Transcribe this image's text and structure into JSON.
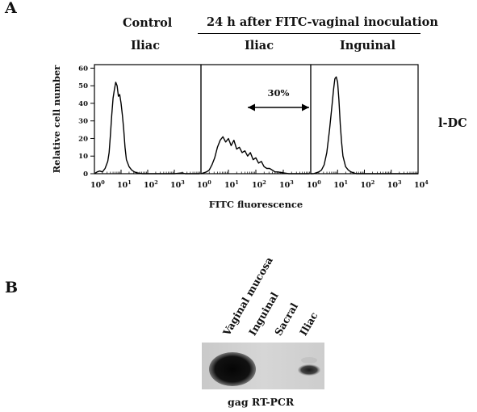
{
  "panel_a": {
    "letter": "A",
    "control_header": "Control",
    "infection_header": "24 h after FITC-vaginal inoculation",
    "subheaders": [
      "Iliac",
      "Iliac",
      "Inguinal"
    ],
    "row_label": "l-DC",
    "arrow_label": "30%"
  },
  "chart_data": {
    "type": "line",
    "xlabel": "FITC fluorescence",
    "ylabel": "Relative cell number",
    "x_scale": "log",
    "x_ticks": [
      "0",
      "1",
      "2",
      "3"
    ],
    "x_ticks_last_panel": [
      "0",
      "1",
      "2",
      "3",
      "4"
    ],
    "y_ticks": [
      0,
      10,
      20,
      30,
      40,
      50,
      60
    ],
    "ylim": [
      0,
      62
    ],
    "series": [
      {
        "x": [
          0.0,
          0.1,
          0.2,
          0.3,
          0.4,
          0.5,
          0.55,
          0.6,
          0.65,
          0.7,
          0.75,
          0.8,
          0.85,
          0.9,
          0.95,
          1.0,
          1.05,
          1.1,
          1.15,
          1.2,
          1.3,
          1.4,
          1.5,
          1.6,
          1.8,
          2.2,
          2.6,
          3.0,
          3.3,
          3.4,
          3.6,
          3.95
        ],
        "y": [
          0,
          1,
          1.5,
          1,
          3,
          7,
          12,
          22,
          33,
          43,
          48,
          52,
          50,
          44,
          45,
          40,
          33,
          25,
          15,
          8,
          4,
          2,
          1,
          0.5,
          0,
          0,
          0,
          0,
          0.5,
          0,
          0,
          0
        ]
      },
      {
        "x": [
          0.0,
          0.1,
          0.2,
          0.3,
          0.4,
          0.5,
          0.6,
          0.7,
          0.8,
          0.9,
          1.0,
          1.1,
          1.2,
          1.3,
          1.4,
          1.5,
          1.6,
          1.7,
          1.8,
          1.9,
          2.0,
          2.1,
          2.2,
          2.3,
          2.4,
          2.5,
          2.6,
          2.7,
          2.8,
          3.0,
          3.2,
          3.4,
          3.6,
          3.95
        ],
        "y": [
          0,
          0.5,
          1,
          2,
          5,
          9,
          15,
          19,
          21,
          18,
          20,
          16,
          19,
          14,
          15,
          12,
          13,
          10,
          12,
          8,
          9,
          6,
          7,
          4,
          3,
          3,
          2,
          1,
          1,
          0.5,
          0,
          0,
          0,
          0
        ]
      },
      {
        "x": [
          0.0,
          0.1,
          0.2,
          0.3,
          0.4,
          0.5,
          0.6,
          0.7,
          0.8,
          0.85,
          0.9,
          0.95,
          1.0,
          1.05,
          1.1,
          1.15,
          1.2,
          1.3,
          1.4,
          1.5,
          1.7,
          2.0,
          2.5,
          3.0,
          3.5,
          4.0
        ],
        "y": [
          0,
          0,
          0.5,
          1,
          2,
          5,
          12,
          25,
          40,
          48,
          54,
          55,
          52,
          42,
          28,
          18,
          10,
          4,
          2,
          1,
          0,
          0,
          0,
          0,
          0,
          0
        ]
      }
    ]
  },
  "panel_b": {
    "letter": "B",
    "lane_labels": [
      "Vaginal mucosa",
      "Inguinal",
      "Sacral",
      "Iliac"
    ],
    "caption": "gag RT-PCR"
  }
}
